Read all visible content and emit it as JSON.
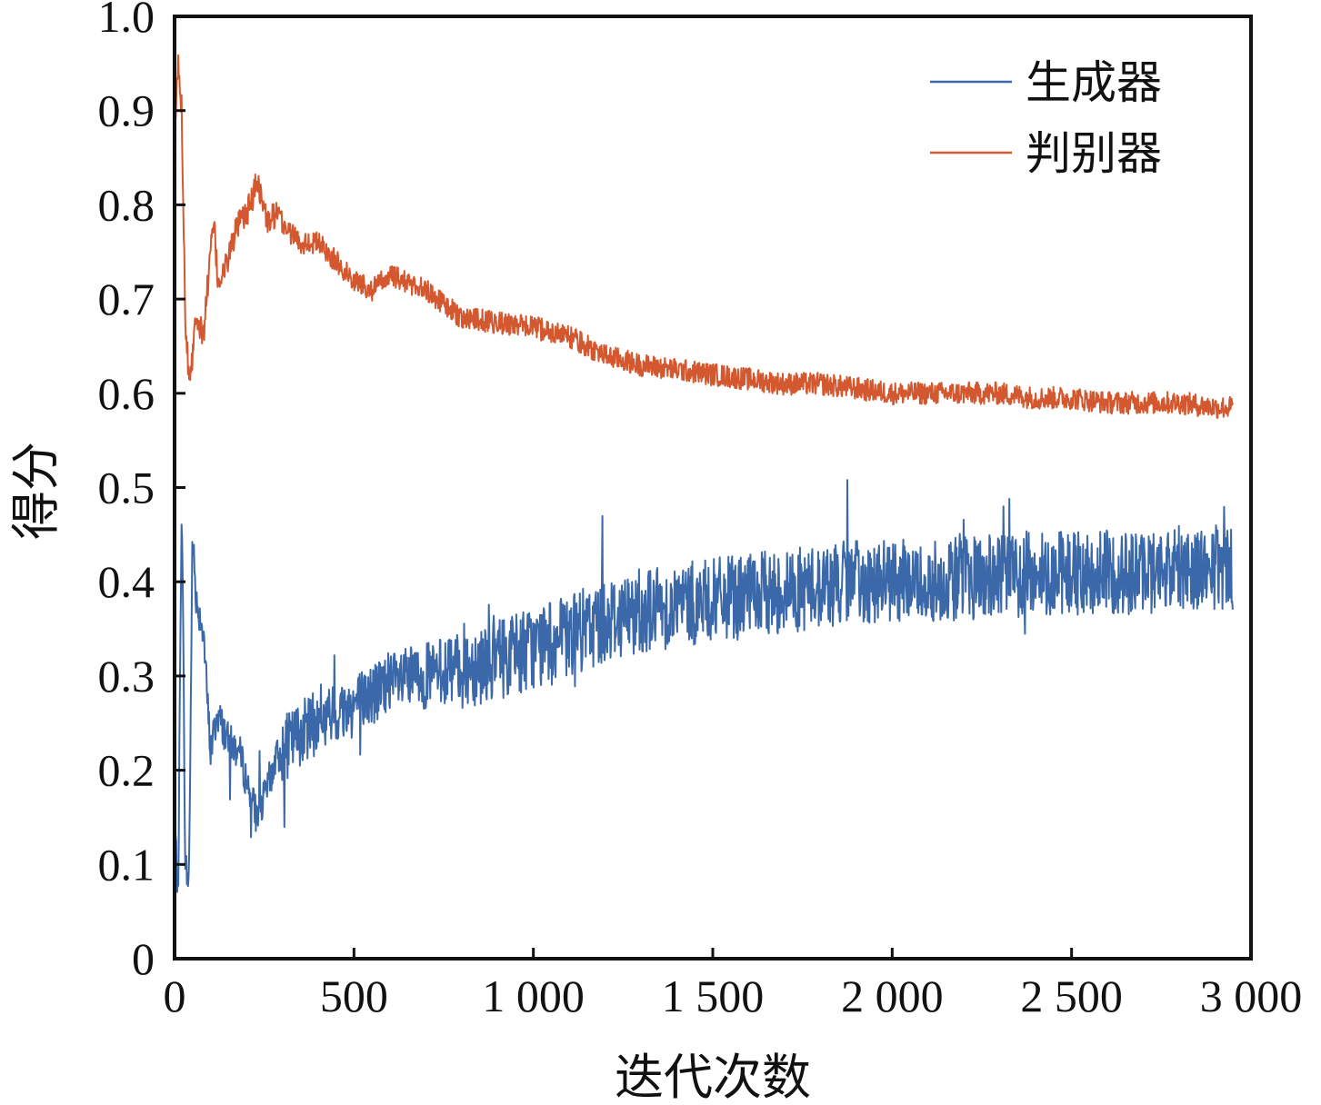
{
  "chart_data": {
    "type": "line",
    "xlabel": "迭代次数",
    "ylabel": "得分",
    "xlim": [
      0,
      3000
    ],
    "ylim": [
      0,
      1.0
    ],
    "x_ticks": [
      0,
      500,
      1000,
      1500,
      2000,
      2500,
      3000
    ],
    "x_tick_labels": [
      "0",
      "500",
      "1 000",
      "1 500",
      "2 000",
      "2 500",
      "3 000"
    ],
    "y_ticks": [
      0,
      0.1,
      0.2,
      0.3,
      0.4,
      0.5,
      0.6,
      0.7,
      0.8,
      0.9,
      1.0
    ],
    "y_tick_labels": [
      "0",
      "0.1",
      "0.2",
      "0.3",
      "0.4",
      "0.5",
      "0.6",
      "0.7",
      "0.8",
      "0.9",
      "1.0"
    ],
    "grid": false,
    "legend_position": "top-right",
    "series": [
      {
        "name": "生成器",
        "color": "#3a68a8",
        "x": [
          0,
          10,
          20,
          30,
          40,
          50,
          60,
          80,
          100,
          120,
          150,
          180,
          200,
          230,
          250,
          280,
          300,
          350,
          400,
          450,
          500,
          550,
          600,
          700,
          800,
          900,
          1000,
          1100,
          1200,
          1300,
          1400,
          1500,
          1600,
          1700,
          1800,
          1900,
          2000,
          2100,
          2200,
          2300,
          2400,
          2500,
          2600,
          2700,
          2800,
          2900,
          2950
        ],
        "values": [
          0.15,
          0.06,
          0.5,
          0.1,
          0.08,
          0.45,
          0.38,
          0.35,
          0.22,
          0.26,
          0.23,
          0.22,
          0.19,
          0.15,
          0.17,
          0.21,
          0.22,
          0.24,
          0.25,
          0.26,
          0.27,
          0.28,
          0.29,
          0.3,
          0.31,
          0.32,
          0.33,
          0.34,
          0.36,
          0.37,
          0.375,
          0.38,
          0.385,
          0.39,
          0.395,
          0.4,
          0.4,
          0.4,
          0.405,
          0.405,
          0.41,
          0.41,
          0.41,
          0.41,
          0.415,
          0.415,
          0.415
        ]
      },
      {
        "name": "判别器",
        "color": "#d4582f",
        "x": [
          0,
          10,
          20,
          30,
          40,
          50,
          60,
          70,
          80,
          100,
          110,
          120,
          140,
          160,
          180,
          200,
          220,
          230,
          240,
          260,
          280,
          300,
          350,
          400,
          450,
          500,
          550,
          600,
          700,
          800,
          900,
          1000,
          1100,
          1200,
          1300,
          1400,
          1500,
          1600,
          1700,
          1800,
          1900,
          2000,
          2100,
          2200,
          2300,
          2400,
          2500,
          2600,
          2700,
          2800,
          2900,
          2950
        ],
        "values": [
          0.88,
          0.95,
          0.9,
          0.68,
          0.62,
          0.64,
          0.69,
          0.67,
          0.66,
          0.75,
          0.78,
          0.72,
          0.73,
          0.76,
          0.78,
          0.79,
          0.81,
          0.83,
          0.81,
          0.78,
          0.79,
          0.78,
          0.76,
          0.76,
          0.74,
          0.72,
          0.71,
          0.725,
          0.71,
          0.68,
          0.675,
          0.67,
          0.66,
          0.64,
          0.63,
          0.625,
          0.62,
          0.615,
          0.61,
          0.61,
          0.605,
          0.6,
          0.6,
          0.6,
          0.6,
          0.595,
          0.595,
          0.59,
          0.59,
          0.59,
          0.585,
          0.585
        ]
      }
    ]
  }
}
